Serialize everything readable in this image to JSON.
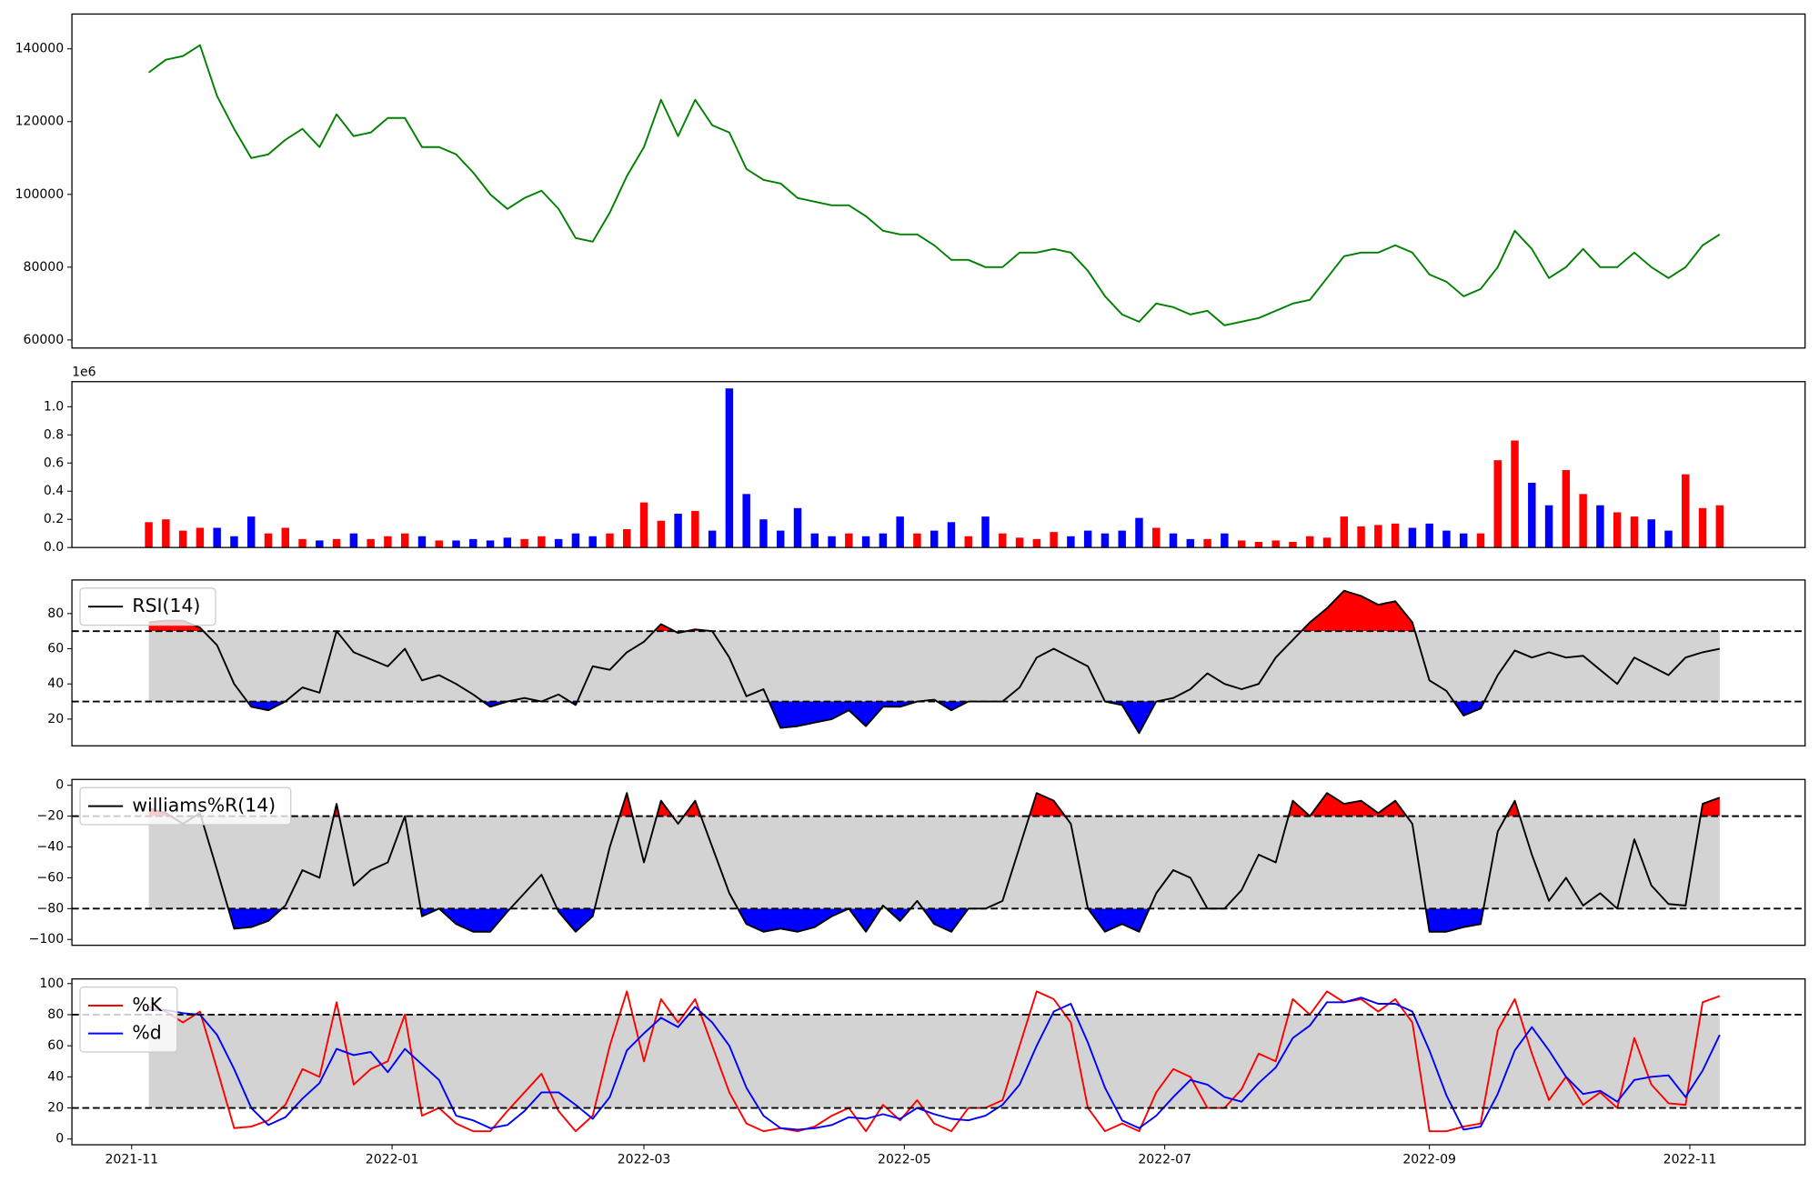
{
  "chart_data": [
    {
      "type": "line",
      "x": [
        4,
        8,
        12,
        16,
        20,
        24,
        28,
        32,
        36,
        40,
        44,
        48,
        52,
        56,
        60,
        64,
        68,
        72,
        76,
        80,
        84,
        88,
        92,
        96,
        100,
        104,
        108,
        112,
        116,
        120,
        124,
        128,
        132,
        136,
        140,
        144,
        148,
        152,
        156,
        160,
        164,
        168,
        172,
        176,
        180,
        184,
        188,
        192,
        196,
        200,
        204,
        208,
        212,
        216,
        220,
        224,
        228,
        232,
        236,
        240,
        244,
        248,
        252,
        256,
        260,
        264,
        268,
        272,
        276,
        280,
        284,
        288,
        292,
        296,
        300,
        304,
        308,
        312,
        316,
        320,
        324,
        328,
        332,
        336,
        340,
        344,
        348,
        352,
        356,
        360,
        364,
        368,
        372
      ],
      "series": [
        {
          "color": "#008000",
          "values": [
            133500,
            137000,
            138000,
            141000,
            127000,
            118000,
            110000,
            111000,
            115000,
            118000,
            113000,
            122000,
            116000,
            117000,
            121000,
            121000,
            113000,
            113000,
            111000,
            106000,
            100000,
            96000,
            99000,
            101000,
            96000,
            88000,
            87000,
            95000,
            105000,
            113000,
            126000,
            116000,
            126000,
            119000,
            117000,
            107000,
            104000,
            103000,
            99000,
            98000,
            97000,
            97000,
            94000,
            90000,
            89000,
            89000,
            86000,
            82000,
            82000,
            80000,
            80000,
            84000,
            84000,
            85000,
            84000,
            79000,
            72000,
            67000,
            65000,
            70000,
            69000,
            67000,
            68000,
            64000,
            65000,
            66000,
            68000,
            70000,
            71000,
            77000,
            83000,
            84000,
            84000,
            86000,
            84000,
            78000,
            76000,
            72000,
            74000,
            80000,
            90000,
            85000,
            77000,
            80000,
            85000,
            80000,
            80000,
            84000,
            80000,
            77000,
            80000,
            86000,
            89000
          ]
        }
      ],
      "xlim": [
        -14,
        392
      ],
      "ylim": [
        57770,
        149560
      ],
      "yticks": [
        60000,
        80000,
        100000,
        120000,
        140000
      ]
    },
    {
      "type": "bar",
      "x": [
        4,
        8,
        12,
        16,
        20,
        24,
        28,
        32,
        36,
        40,
        44,
        48,
        52,
        56,
        60,
        64,
        68,
        72,
        76,
        80,
        84,
        88,
        92,
        96,
        100,
        104,
        108,
        112,
        116,
        120,
        124,
        128,
        132,
        136,
        140,
        144,
        148,
        152,
        156,
        160,
        164,
        168,
        172,
        176,
        180,
        184,
        188,
        192,
        196,
        200,
        204,
        208,
        212,
        216,
        220,
        224,
        228,
        232,
        236,
        240,
        244,
        248,
        252,
        256,
        260,
        264,
        268,
        272,
        276,
        280,
        284,
        288,
        292,
        296,
        300,
        304,
        308,
        312,
        316,
        320,
        324,
        328,
        332,
        336,
        340,
        344,
        348,
        352,
        356,
        360,
        364,
        368,
        372
      ],
      "series": [
        {
          "up_color": "red",
          "down_color": "blue",
          "values": [
            180000,
            200000,
            120000,
            140000,
            140000,
            80000,
            220000,
            100000,
            140000,
            60000,
            50000,
            60000,
            100000,
            60000,
            80000,
            100000,
            80000,
            50000,
            50000,
            60000,
            50000,
            70000,
            60000,
            80000,
            60000,
            100000,
            80000,
            100000,
            130000,
            320000,
            190000,
            240000,
            260000,
            120000,
            1130000,
            380000,
            200000,
            120000,
            280000,
            100000,
            80000,
            100000,
            80000,
            100000,
            220000,
            100000,
            120000,
            180000,
            80000,
            220000,
            100000,
            70000,
            60000,
            110000,
            80000,
            120000,
            100000,
            120000,
            210000,
            140000,
            100000,
            60000,
            60000,
            100000,
            50000,
            40000,
            50000,
            40000,
            80000,
            70000,
            220000,
            150000,
            160000,
            170000,
            140000,
            170000,
            120000,
            100000,
            100000,
            620000,
            760000,
            460000,
            300000,
            550000,
            380000,
            300000,
            250000,
            220000,
            200000,
            120000,
            520000,
            280000,
            300000
          ]
        }
      ],
      "offset_label": "1e6",
      "xlim": [
        -14,
        392
      ],
      "ylim": [
        0,
        1178000
      ],
      "yticks": [
        {
          "value": 0,
          "label": "0.0"
        },
        {
          "value": 200000,
          "label": "0.2"
        },
        {
          "value": 400000,
          "label": "0.4"
        },
        {
          "value": 600000,
          "label": "0.6"
        },
        {
          "value": 800000,
          "label": "0.8"
        },
        {
          "value": 1000000,
          "label": "1.0"
        }
      ]
    },
    {
      "type": "line",
      "x": [
        4,
        8,
        12,
        16,
        20,
        24,
        28,
        32,
        36,
        40,
        44,
        48,
        52,
        56,
        60,
        64,
        68,
        72,
        76,
        80,
        84,
        88,
        92,
        96,
        100,
        104,
        108,
        112,
        116,
        120,
        124,
        128,
        132,
        136,
        140,
        144,
        148,
        152,
        156,
        160,
        164,
        168,
        172,
        176,
        180,
        184,
        188,
        192,
        196,
        200,
        204,
        208,
        212,
        216,
        220,
        224,
        228,
        232,
        236,
        240,
        244,
        248,
        252,
        256,
        260,
        264,
        268,
        272,
        276,
        280,
        284,
        288,
        292,
        296,
        300,
        304,
        308,
        312,
        316,
        320,
        324,
        328,
        332,
        336,
        340,
        344,
        348,
        352,
        356,
        360,
        364,
        368,
        372
      ],
      "series": [
        {
          "name": "RSI(14)",
          "color": "black",
          "values": [
            75,
            76,
            76,
            72,
            62,
            40,
            27,
            25,
            30,
            38,
            35,
            70,
            58,
            54,
            50,
            60,
            42,
            45,
            40,
            34,
            27,
            30,
            32,
            30,
            34,
            28,
            50,
            48,
            58,
            64,
            74,
            69,
            71,
            70,
            55,
            33,
            37,
            15,
            16,
            18,
            20,
            25,
            16,
            27,
            27,
            30,
            31,
            25,
            30,
            30,
            30,
            38,
            55,
            60,
            55,
            50,
            30,
            28,
            12,
            30,
            32,
            37,
            46,
            40,
            37,
            40,
            55,
            65,
            75,
            83,
            93,
            90,
            85,
            87,
            75,
            42,
            36,
            22,
            26,
            45,
            59,
            55,
            58,
            55,
            56,
            48,
            40,
            55,
            50,
            45,
            55,
            58,
            60
          ]
        }
      ],
      "thresholds": [
        30,
        70
      ],
      "band_color": "#d3d3d3",
      "fill_above_color": "red",
      "fill_below_color": "blue",
      "legend": "upper left",
      "xlim": [
        -14,
        392
      ],
      "ylim": [
        4.8,
        99.1
      ],
      "yticks": [
        20,
        40,
        60,
        80
      ]
    },
    {
      "type": "line",
      "x": [
        4,
        8,
        12,
        16,
        20,
        24,
        28,
        32,
        36,
        40,
        44,
        48,
        52,
        56,
        60,
        64,
        68,
        72,
        76,
        80,
        84,
        88,
        92,
        96,
        100,
        104,
        108,
        112,
        116,
        120,
        124,
        128,
        132,
        136,
        140,
        144,
        148,
        152,
        156,
        160,
        164,
        168,
        172,
        176,
        180,
        184,
        188,
        192,
        196,
        200,
        204,
        208,
        212,
        216,
        220,
        224,
        228,
        232,
        236,
        240,
        244,
        248,
        252,
        256,
        260,
        264,
        268,
        272,
        276,
        280,
        284,
        288,
        292,
        296,
        300,
        304,
        308,
        312,
        316,
        320,
        324,
        328,
        332,
        336,
        340,
        344,
        348,
        352,
        356,
        360,
        364,
        368,
        372
      ],
      "series": [
        {
          "name": "williams%R(14)",
          "color": "black",
          "values": [
            -15,
            -18,
            -25,
            -18,
            -55,
            -93,
            -92,
            -88,
            -78,
            -55,
            -60,
            -12,
            -65,
            -55,
            -50,
            -20,
            -85,
            -80,
            -90,
            -95,
            -95,
            -82,
            -70,
            -58,
            -82,
            -95,
            -85,
            -40,
            -5,
            -50,
            -10,
            -25,
            -10,
            -40,
            -70,
            -90,
            -95,
            -93,
            -95,
            -92,
            -85,
            -80,
            -95,
            -78,
            -88,
            -75,
            -90,
            -95,
            -80,
            -80,
            -75,
            -40,
            -5,
            -10,
            -25,
            -80,
            -95,
            -90,
            -95,
            -70,
            -55,
            -60,
            -80,
            -80,
            -68,
            -45,
            -50,
            -10,
            -20,
            -5,
            -12,
            -10,
            -18,
            -10,
            -25,
            -95,
            -95,
            -92,
            -90,
            -30,
            -10,
            -45,
            -75,
            -60,
            -78,
            -70,
            -80,
            -35,
            -65,
            -77,
            -78,
            -12,
            -8
          ]
        }
      ],
      "thresholds": [
        -80,
        -20
      ],
      "band_color": "#d3d3d3",
      "fill_above_color": "red",
      "fill_below_color": "blue",
      "legend": "upper left",
      "xlim": [
        -14,
        392
      ],
      "ylim": [
        -103.8,
        3.8
      ],
      "yticks": [
        {
          "value": -100,
          "label": "−100"
        },
        {
          "value": -80,
          "label": "−80"
        },
        {
          "value": -60,
          "label": "−60"
        },
        {
          "value": -40,
          "label": "−40"
        },
        {
          "value": -20,
          "label": "−20"
        },
        0
      ]
    },
    {
      "type": "line",
      "x": [
        4,
        8,
        12,
        16,
        20,
        24,
        28,
        32,
        36,
        40,
        44,
        48,
        52,
        56,
        60,
        64,
        68,
        72,
        76,
        80,
        84,
        88,
        92,
        96,
        100,
        104,
        108,
        112,
        116,
        120,
        124,
        128,
        132,
        136,
        140,
        144,
        148,
        152,
        156,
        160,
        164,
        168,
        172,
        176,
        180,
        184,
        188,
        192,
        196,
        200,
        204,
        208,
        212,
        216,
        220,
        224,
        228,
        232,
        236,
        240,
        244,
        248,
        252,
        256,
        260,
        264,
        268,
        272,
        276,
        280,
        284,
        288,
        292,
        296,
        300,
        304,
        308,
        312,
        316,
        320,
        324,
        328,
        332,
        336,
        340,
        344,
        348,
        352,
        356,
        360,
        364,
        368,
        372
      ],
      "series": [
        {
          "name": "%K",
          "color": "red",
          "values": [
            85,
            82,
            75,
            82,
            45,
            7,
            8,
            12,
            22,
            45,
            40,
            88,
            35,
            45,
            50,
            80,
            15,
            20,
            10,
            5,
            5,
            18,
            30,
            42,
            18,
            5,
            15,
            60,
            95,
            50,
            90,
            75,
            90,
            60,
            30,
            10,
            5,
            7,
            5,
            8,
            15,
            20,
            5,
            22,
            12,
            25,
            10,
            5,
            20,
            20,
            25,
            60,
            95,
            90,
            75,
            20,
            5,
            10,
            5,
            30,
            45,
            40,
            20,
            20,
            32,
            55,
            50,
            90,
            80,
            95,
            88,
            90,
            82,
            90,
            75,
            5,
            5,
            8,
            10,
            70,
            90,
            55,
            25,
            40,
            22,
            30,
            20,
            65,
            35,
            23,
            22,
            88,
            92
          ]
        },
        {
          "name": "%d",
          "color": "blue",
          "values": [
            83,
            83,
            81,
            80,
            67,
            45,
            20,
            9,
            14,
            26,
            36,
            58,
            54,
            56,
            43,
            58,
            48,
            38,
            15,
            12,
            7,
            9,
            18,
            30,
            30,
            22,
            13,
            27,
            57,
            68,
            78,
            72,
            85,
            75,
            60,
            33,
            15,
            7,
            6,
            7,
            9,
            14,
            13,
            16,
            13,
            20,
            16,
            13,
            12,
            15,
            22,
            35,
            60,
            82,
            87,
            62,
            33,
            12,
            7,
            15,
            27,
            38,
            35,
            27,
            24,
            36,
            46,
            65,
            73,
            88,
            88,
            91,
            87,
            87,
            82,
            57,
            28,
            6,
            8,
            29,
            57,
            72,
            57,
            40,
            29,
            31,
            24,
            38,
            40,
            41,
            27,
            44,
            67
          ]
        }
      ],
      "thresholds": [
        20,
        80
      ],
      "band_color": "#d3d3d3",
      "legend": "upper left",
      "xlim": [
        -14,
        392
      ],
      "ylim": [
        -3.7,
        103
      ],
      "yticks": [
        0,
        20,
        40,
        60,
        80,
        100
      ],
      "xticks": [
        {
          "value": 0,
          "label": "2021-11"
        },
        {
          "value": 61,
          "label": "2022-01"
        },
        {
          "value": 120,
          "label": "2022-03"
        },
        {
          "value": 181,
          "label": "2022-05"
        },
        {
          "value": 242,
          "label": "2022-07"
        },
        {
          "value": 304,
          "label": "2022-09"
        },
        {
          "value": 365,
          "label": "2022-11"
        }
      ]
    }
  ]
}
